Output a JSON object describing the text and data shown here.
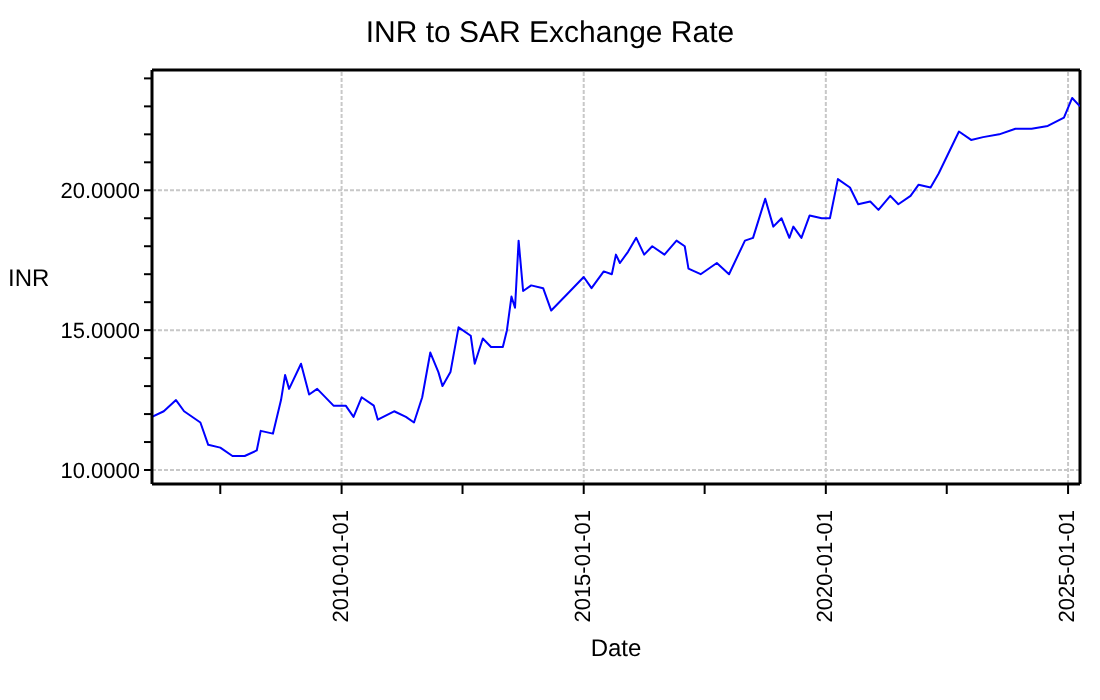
{
  "chart_data": {
    "type": "line",
    "title": "INR to SAR Exchange Rate",
    "xlabel": "Date",
    "ylabel": "INR",
    "x": [
      "2006-02",
      "2006-05",
      "2006-08",
      "2006-10",
      "2007-02",
      "2007-04",
      "2007-07",
      "2007-10",
      "2008-01",
      "2008-04",
      "2008-05",
      "2008-08",
      "2008-10",
      "2008-11",
      "2008-12",
      "2009-03",
      "2009-05",
      "2009-07",
      "2009-11",
      "2010-02",
      "2010-04",
      "2010-06",
      "2010-09",
      "2010-10",
      "2011-02",
      "2011-05",
      "2011-07",
      "2011-09",
      "2011-11",
      "2012-01",
      "2012-02",
      "2012-04",
      "2012-06",
      "2012-09",
      "2012-10",
      "2012-12",
      "2013-02",
      "2013-05",
      "2013-06",
      "2013-07-05",
      "2013-08-01",
      "2013-08-28",
      "2013-10",
      "2013-12",
      "2014-03",
      "2014-05",
      "2014-09",
      "2015-01",
      "2015-03",
      "2015-06",
      "2015-08",
      "2015-09",
      "2015-10",
      "2015-12",
      "2016-02",
      "2016-04",
      "2016-06",
      "2016-09",
      "2016-12",
      "2017-02",
      "2017-03",
      "2017-06",
      "2017-10",
      "2018-01",
      "2018-05",
      "2018-07",
      "2018-10",
      "2018-12",
      "2019-02",
      "2019-04",
      "2019-05",
      "2019-07",
      "2019-09",
      "2019-12",
      "2020-02",
      "2020-04",
      "2020-07",
      "2020-09",
      "2020-12",
      "2021-02",
      "2021-05",
      "2021-07",
      "2021-10",
      "2021-12",
      "2022-03",
      "2022-05",
      "2022-07",
      "2022-10",
      "2023-01",
      "2023-04",
      "2023-08",
      "2023-12",
      "2024-04",
      "2024-08",
      "2024-12",
      "2025-02",
      "2025-04"
    ],
    "series": [
      {
        "color": "#0000ff",
        "values": [
          11.9,
          12.1,
          12.5,
          12.1,
          11.7,
          10.9,
          10.8,
          10.5,
          10.5,
          10.7,
          11.4,
          11.3,
          12.5,
          13.4,
          12.9,
          13.8,
          12.7,
          12.9,
          12.3,
          12.3,
          11.9,
          12.6,
          12.3,
          11.8,
          12.1,
          11.9,
          11.7,
          12.6,
          14.2,
          13.5,
          13.0,
          13.5,
          15.1,
          14.8,
          13.8,
          14.7,
          14.4,
          14.4,
          15.0,
          16.2,
          15.8,
          18.2,
          16.4,
          16.6,
          16.5,
          15.7,
          16.3,
          16.9,
          16.5,
          17.1,
          17.0,
          17.7,
          17.4,
          17.8,
          18.3,
          17.7,
          18.0,
          17.7,
          18.2,
          18.0,
          17.2,
          17.0,
          17.4,
          17.0,
          18.2,
          18.3,
          19.7,
          18.7,
          19.0,
          18.3,
          18.7,
          18.3,
          19.1,
          19.0,
          19.0,
          20.4,
          20.1,
          19.5,
          19.6,
          19.3,
          19.8,
          19.5,
          19.8,
          20.2,
          20.1,
          20.6,
          21.2,
          22.1,
          21.8,
          21.9,
          22.0,
          22.2,
          22.2,
          22.3,
          22.6,
          23.3,
          23.0
        ]
      }
    ],
    "xlim": [
      "2006-02",
      "2025-04"
    ],
    "xticks": [
      {
        "value": "2007-07-01",
        "label": null
      },
      "2010-01-01",
      {
        "value": "2012-07-01",
        "label": null
      },
      "2015-01-01",
      {
        "value": "2017-07-01",
        "label": null
      },
      "2020-01-01",
      {
        "value": "2022-07-01",
        "label": null
      },
      "2025-01-01"
    ],
    "ylim": [
      9.5,
      24.3
    ],
    "yticks": [
      {
        "value": 10,
        "label": "10.0000"
      },
      {
        "value": 11,
        "label": null
      },
      {
        "value": 12,
        "label": null
      },
      {
        "value": 13,
        "label": null
      },
      {
        "value": 14,
        "label": null
      },
      {
        "value": 15,
        "label": "15.0000"
      },
      {
        "value": 16,
        "label": null
      },
      {
        "value": 17,
        "label": null
      },
      {
        "value": 18,
        "label": null
      },
      {
        "value": 19,
        "label": null
      },
      {
        "value": 20,
        "label": "20.0000"
      },
      {
        "value": 21,
        "label": null
      },
      {
        "value": 22,
        "label": null
      },
      {
        "value": 23,
        "label": null
      },
      {
        "value": 24,
        "label": null
      }
    ],
    "grid": true
  }
}
